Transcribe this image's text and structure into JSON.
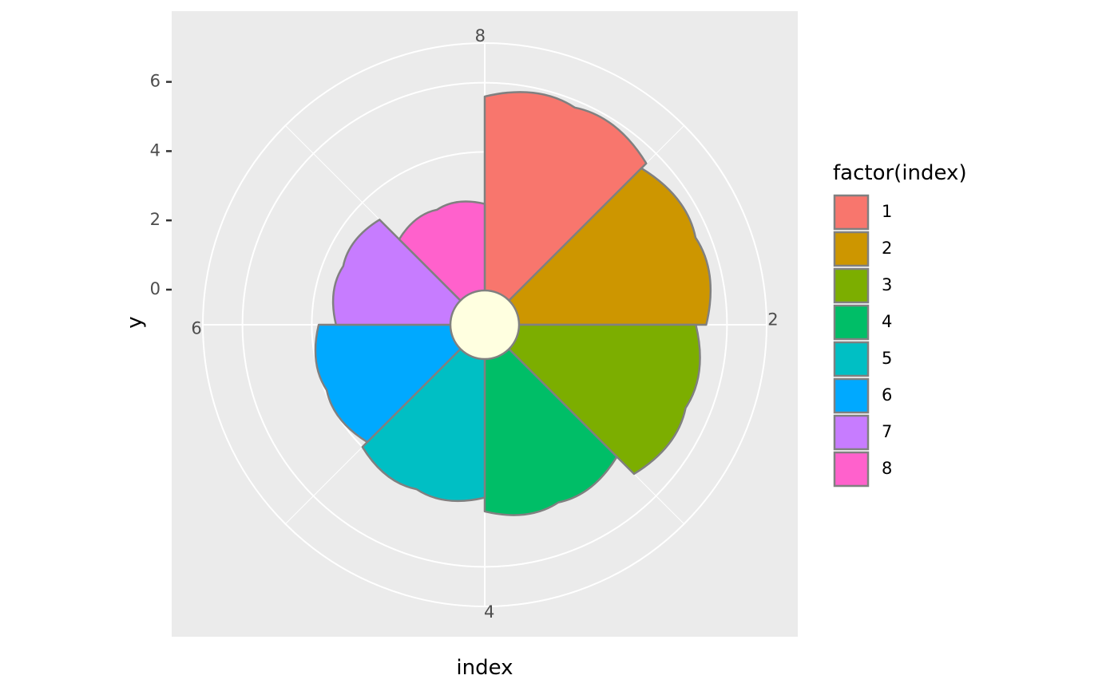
{
  "chart_data": {
    "type": "rose",
    "title": "",
    "xlabel": "index",
    "ylabel": "y",
    "categories": [
      "1",
      "2",
      "3",
      "4",
      "5",
      "6",
      "7",
      "8"
    ],
    "values": [
      5.6,
      5.4,
      5.1,
      4.4,
      4.0,
      3.8,
      3.3,
      2.5
    ],
    "colors": [
      "#F8766D",
      "#CD9600",
      "#7CAE00",
      "#00BE67",
      "#00BFC4",
      "#00A9FF",
      "#C77CFF",
      "#FF61CC"
    ],
    "outline_color": "#808080",
    "center_fill": "#FFFFE0",
    "y_ticks": [
      "0",
      "2",
      "4",
      "6"
    ],
    "y_tick_values": [
      0,
      2,
      4,
      6
    ],
    "angle_ticks": [
      "2",
      "4",
      "6",
      "8"
    ],
    "angle_tick_values": [
      2,
      4,
      6,
      8
    ],
    "grid": true,
    "panel_background": "#EBEBEB",
    "legend": {
      "title": "factor(index)",
      "position": "right",
      "items": [
        "1",
        "2",
        "3",
        "4",
        "5",
        "6",
        "7",
        "8"
      ]
    }
  }
}
